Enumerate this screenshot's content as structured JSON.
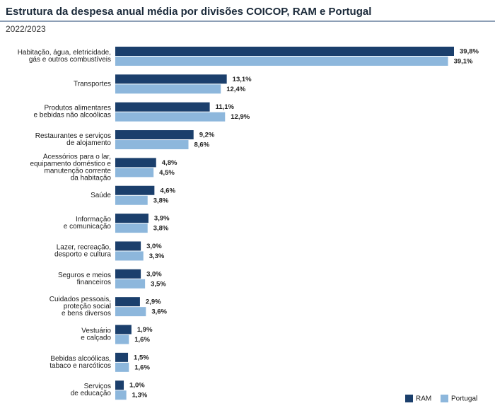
{
  "chart_data": {
    "type": "bar",
    "orientation": "horizontal",
    "title": "Estrutura da despesa anual média por divisões COICOP, RAM e Portugal",
    "subtitle": "2022/2023",
    "categories": [
      "Habitação, água, eletricidade,\ngás e outros combustíveis",
      "Transportes",
      "Produtos alimentares\ne bebidas não alcoólicas",
      "Restaurantes e serviços\nde alojamento",
      "Acessórios para o lar,\nequipamento doméstico e\nmanutenção corrente\nda habitação",
      "Saúde",
      "Informação\ne comunicação",
      "Lazer, recreação,\ndesporto e cultura",
      "Seguros e meios\nfinanceiros",
      "Cuidados pessoais,\nproteção social\ne bens diversos",
      "Vestuário\ne calçado",
      "Bebidas alcoólicas,\ntabaco e narcóticos",
      "Serviços\nde educação"
    ],
    "series": [
      {
        "name": "RAM",
        "color": "#1b3f6c",
        "values": [
          39.8,
          13.1,
          11.1,
          9.2,
          4.8,
          4.6,
          3.9,
          3.0,
          3.0,
          2.9,
          1.9,
          1.5,
          1.0
        ],
        "value_labels": [
          "39,8%",
          "13,1%",
          "11,1%",
          "9,2%",
          "4,8%",
          "4,6%",
          "3,9%",
          "3,0%",
          "3,0%",
          "2,9%",
          "1,9%",
          "1,5%",
          "1,0%"
        ]
      },
      {
        "name": "Portugal",
        "color": "#8db7dc",
        "values": [
          39.1,
          12.4,
          12.9,
          8.6,
          4.5,
          3.8,
          3.8,
          3.3,
          3.5,
          3.6,
          1.6,
          1.6,
          1.3
        ],
        "value_labels": [
          "39,1%",
          "12,4%",
          "12,9%",
          "8,6%",
          "4,5%",
          "3,8%",
          "3,8%",
          "3,3%",
          "3,5%",
          "3,6%",
          "1,6%",
          "1,6%",
          "1,3%"
        ]
      }
    ],
    "legend": "bottom-right"
  }
}
